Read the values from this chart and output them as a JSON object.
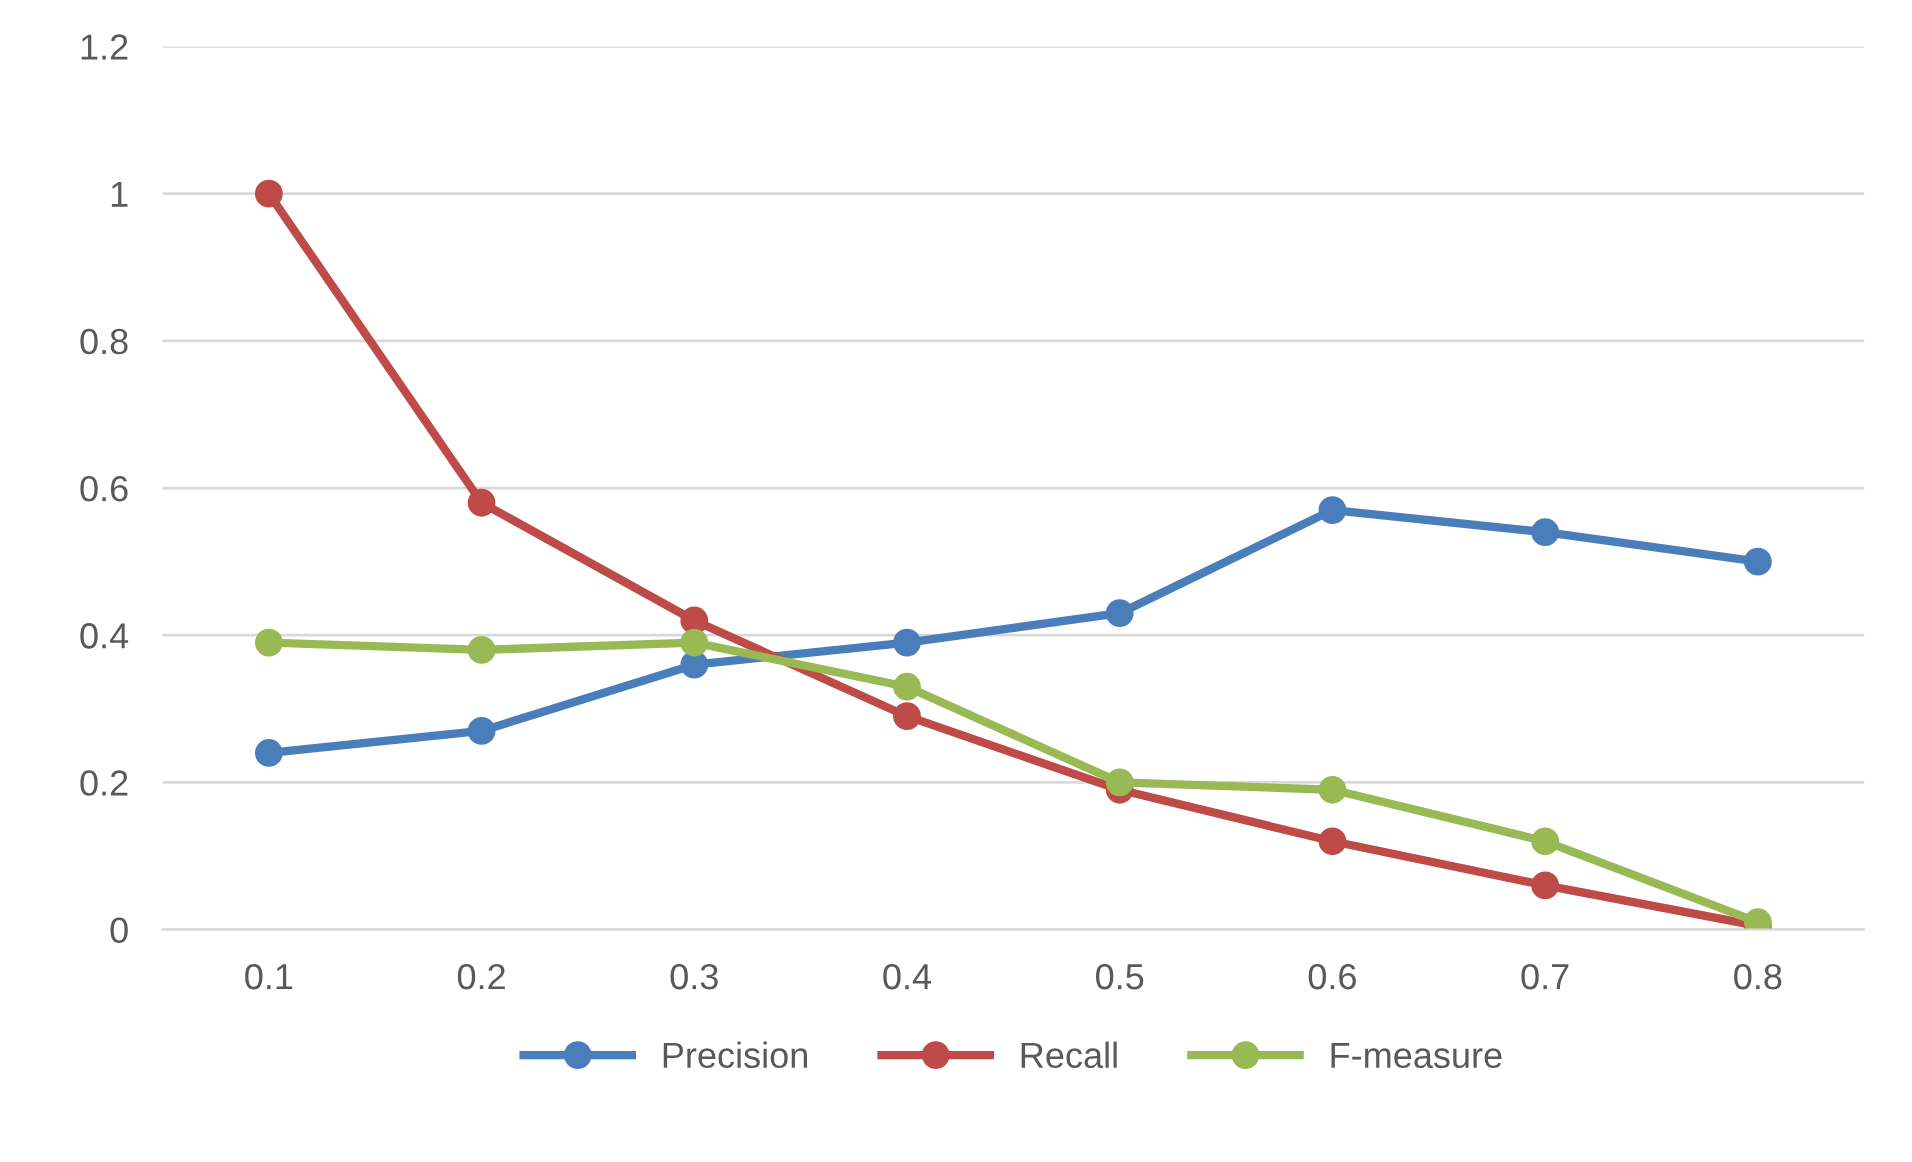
{
  "chart_data": {
    "type": "line",
    "categories": [
      "0.1",
      "0.2",
      "0.3",
      "0.4",
      "0.5",
      "0.6",
      "0.7",
      "0.8"
    ],
    "series": [
      {
        "name": "Precision",
        "color": "#4a7ebb",
        "values": [
          0.24,
          0.27,
          0.36,
          0.39,
          0.43,
          0.57,
          0.54,
          0.5
        ]
      },
      {
        "name": "Recall",
        "color": "#be4b48",
        "values": [
          1.0,
          0.58,
          0.42,
          0.29,
          0.19,
          0.12,
          0.06,
          0.005
        ]
      },
      {
        "name": "F-measure",
        "color": "#98b954",
        "values": [
          0.39,
          0.38,
          0.39,
          0.33,
          0.2,
          0.19,
          0.12,
          0.01
        ]
      }
    ],
    "ylim": [
      0,
      1.2
    ],
    "yticks": [
      0,
      0.2,
      0.4,
      0.6,
      0.8,
      1,
      1.2
    ],
    "grid": "y",
    "legend": "bottom",
    "marker": "circle",
    "line_style": "solid"
  }
}
